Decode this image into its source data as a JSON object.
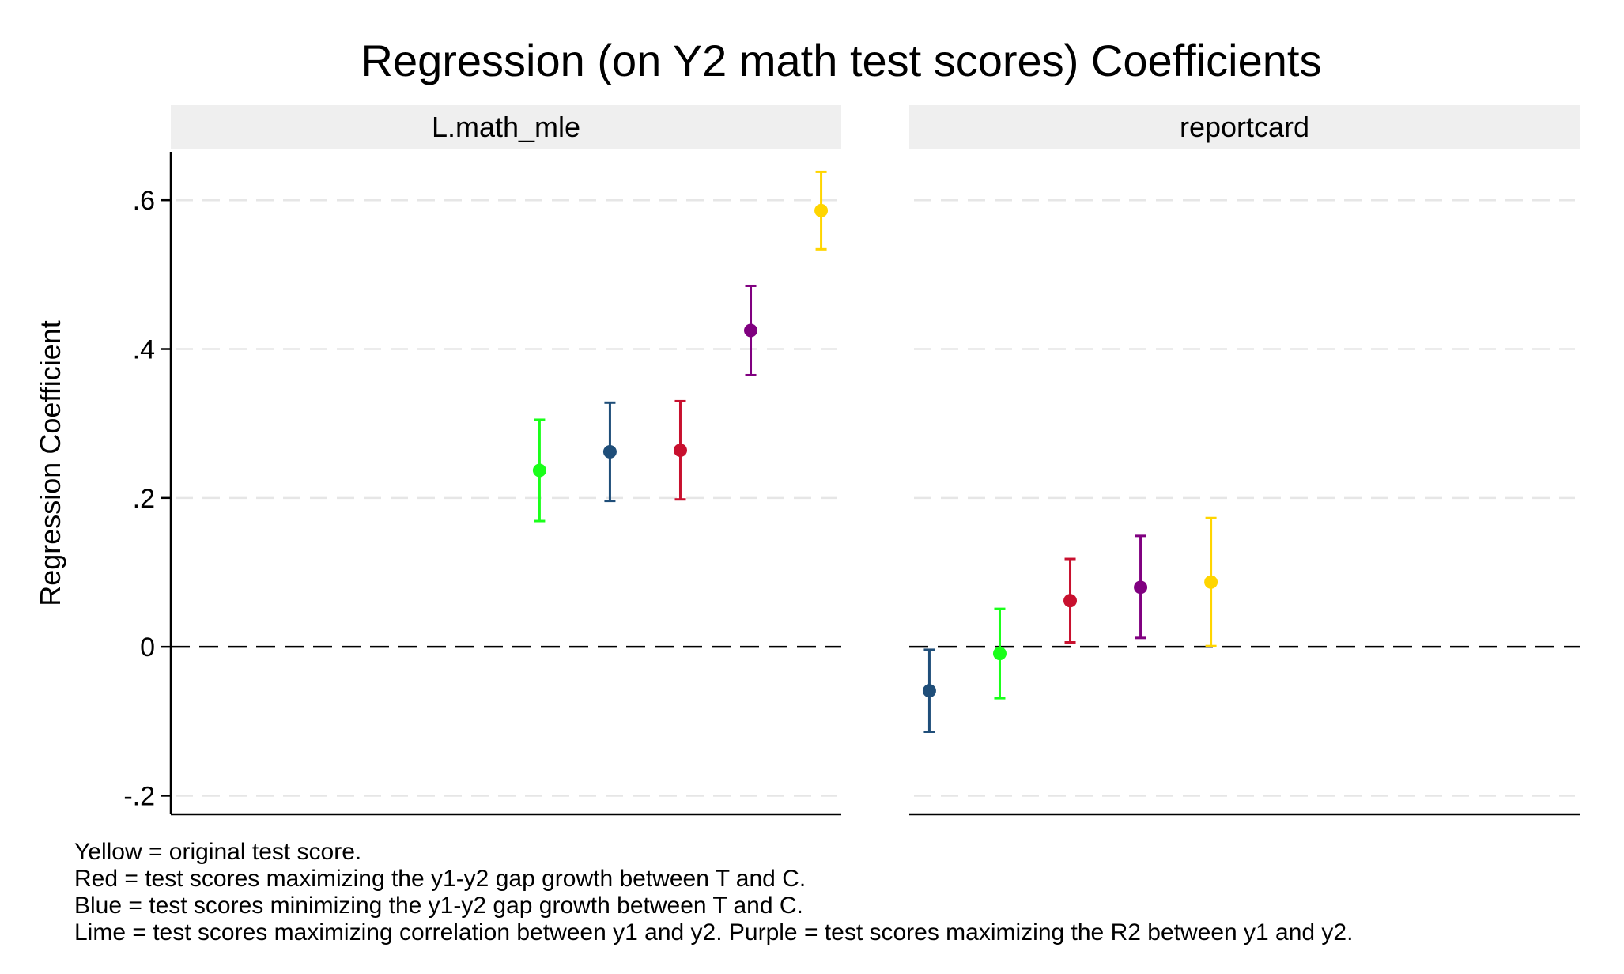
{
  "chart_data": {
    "type": "scatter",
    "title": "Regression (on Y2 math test scores) Coefficients",
    "ylabel": "Regression Coefficient",
    "ylim": [
      -0.225,
      0.665
    ],
    "yticks": [
      {
        "value": 0.6,
        "label": ".6"
      },
      {
        "value": 0.4,
        "label": ".4"
      },
      {
        "value": 0.2,
        "label": ".2"
      },
      {
        "value": 0,
        "label": "0"
      },
      {
        "value": -0.2,
        "label": "-.2"
      }
    ],
    "reference_line": {
      "y": 0,
      "style": "dashed"
    },
    "grid": true,
    "x_axis_labels": "none",
    "colors": {
      "yellow": "#FFD500",
      "red": "#C8102E",
      "blue": "#1F4E79",
      "lime": "#1AFF1A",
      "purple": "#800080"
    },
    "panels": [
      {
        "title": "L.math_mle",
        "points": [
          {
            "x": 1,
            "color": "lime",
            "estimate": 0.237,
            "ci": [
              0.169,
              0.305
            ]
          },
          {
            "x": 2,
            "color": "blue",
            "estimate": 0.262,
            "ci": [
              0.196,
              0.328
            ]
          },
          {
            "x": 3,
            "color": "red",
            "estimate": 0.264,
            "ci": [
              0.198,
              0.33
            ]
          },
          {
            "x": 4,
            "color": "purple",
            "estimate": 0.425,
            "ci": [
              0.365,
              0.485
            ]
          },
          {
            "x": 5,
            "color": "yellow",
            "estimate": 0.586,
            "ci": [
              0.534,
              0.638
            ]
          }
        ]
      },
      {
        "title": "reportcard",
        "points": [
          {
            "x": 1,
            "color": "blue",
            "estimate": -0.059,
            "ci": [
              -0.114,
              -0.004
            ]
          },
          {
            "x": 2,
            "color": "lime",
            "estimate": -0.009,
            "ci": [
              -0.069,
              0.051
            ]
          },
          {
            "x": 3,
            "color": "red",
            "estimate": 0.062,
            "ci": [
              0.006,
              0.118
            ]
          },
          {
            "x": 4,
            "color": "purple",
            "estimate": 0.08,
            "ci": [
              0.012,
              0.149
            ]
          },
          {
            "x": 5,
            "color": "yellow",
            "estimate": 0.087,
            "ci": [
              0.001,
              0.173
            ]
          }
        ]
      }
    ],
    "notes": [
      "Yellow = original test score.",
      "Red = test scores maximizing the y1-y2 gap growth between T and C.",
      "Blue = test scores minimizing the y1-y2 gap growth between T and C.",
      "Lime = test scores maximizing correlation between y1 and y2. Purple = test scores maximizing the R2 between y1 and y2."
    ]
  }
}
